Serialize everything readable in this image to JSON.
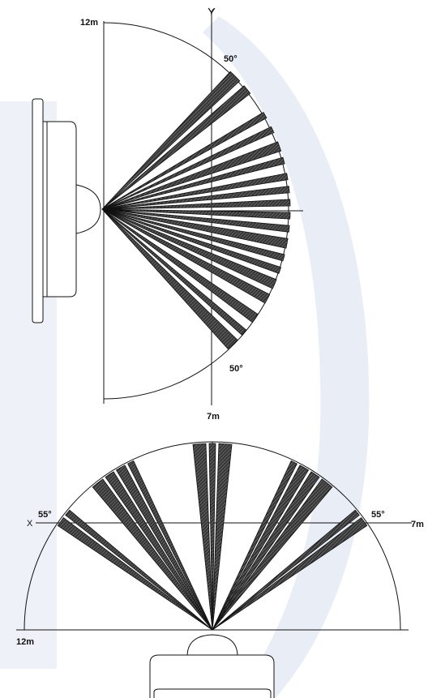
{
  "colors": {
    "background": "#ffffff",
    "watermark_band": "#eef2f8",
    "watermark_arc": "#e9edf6",
    "line": "#111111",
    "beam_fill": "#3a3a3a",
    "beam_hatch": "#111111",
    "sensor_fill": "#ffffff"
  },
  "side_view": {
    "axis_label_y": "Y",
    "range_label": "12m",
    "angle_label_top": "50°",
    "angle_label_bottom": "50°",
    "distance_label": "7m",
    "half_angle_deg": 50,
    "beam_angles_deg": [
      [
        -47,
        -43
      ],
      [
        -41,
        -38
      ],
      [
        -31,
        -29
      ],
      [
        -26,
        -24
      ],
      [
        -21,
        -18
      ],
      [
        -16,
        -14
      ],
      [
        -11,
        -9
      ],
      [
        -7,
        -5
      ],
      [
        -3,
        -1
      ],
      [
        1,
        3
      ],
      [
        5,
        7
      ],
      [
        9,
        12
      ],
      [
        14,
        16
      ],
      [
        18,
        20
      ],
      [
        22,
        25
      ],
      [
        27,
        30
      ],
      [
        34,
        37
      ],
      [
        40,
        42
      ],
      [
        44,
        48
      ]
    ]
  },
  "top_view": {
    "axis_label_x": "X",
    "range_label": "12m",
    "angle_label_left": "55°",
    "angle_label_right": "55°",
    "distance_label": "7m",
    "half_angle_deg": 55,
    "beam_angles_deg": [
      [
        -56,
        -53
      ],
      [
        -52,
        -50
      ],
      [
        -40,
        -36
      ],
      [
        -35,
        -32
      ],
      [
        -31,
        -28
      ],
      [
        -27,
        -25
      ],
      [
        -6,
        -2
      ],
      [
        -1,
        1
      ],
      [
        2,
        6
      ],
      [
        25,
        27
      ],
      [
        28,
        31
      ],
      [
        32,
        35
      ],
      [
        36,
        40
      ],
      [
        50,
        52
      ],
      [
        53,
        56
      ]
    ]
  }
}
